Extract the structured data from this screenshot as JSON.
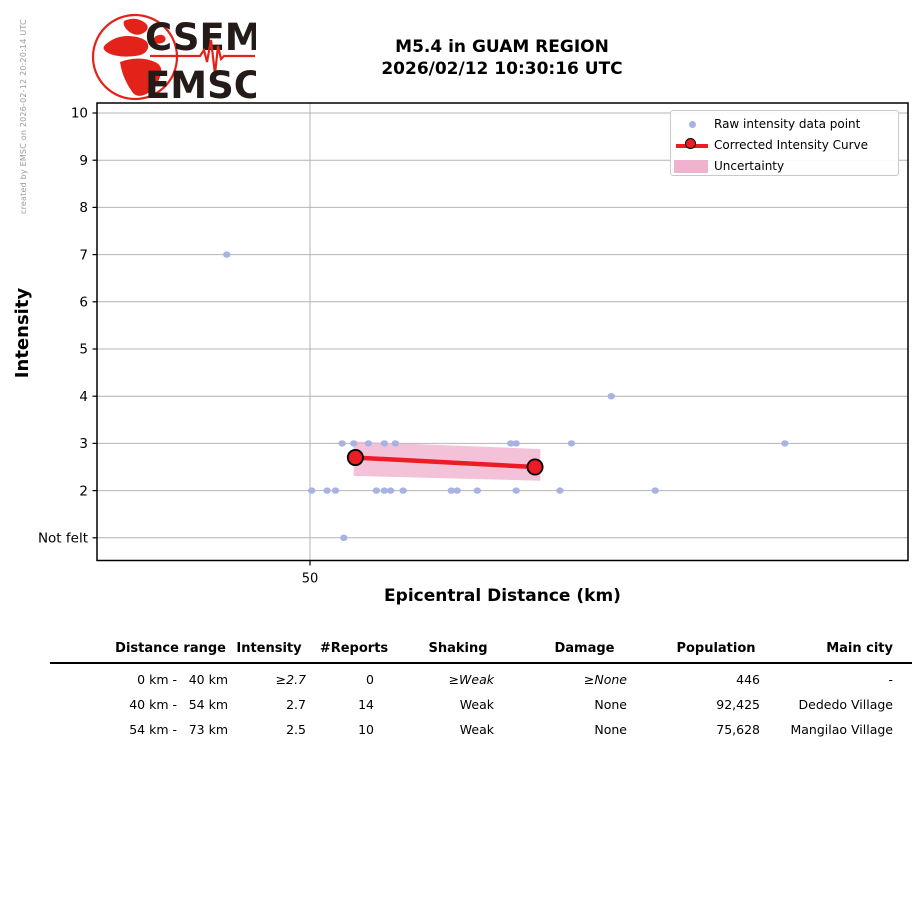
{
  "credit": "created by EMSC on 2026-02-12 20:20:14 UTC",
  "logo": {
    "top_text": "CSEM",
    "bottom_text": "EMSC"
  },
  "title": {
    "line1": "M5.4 in GUAM REGION",
    "line2": "2026/02/12 10:30:16 UTC"
  },
  "chart_data": {
    "type": "scatter",
    "title": "M5.4 in GUAM REGION 2026/02/12 10:30:16 UTC",
    "xlabel": "Epicentral Distance (km)",
    "ylabel": "Intensity",
    "x_scale": "log",
    "x_range_km": [
      39.2,
      100
    ],
    "y_range": [
      0.52,
      10.21
    ],
    "grid": true,
    "x_ticks": [
      {
        "value": 50,
        "label": "50"
      }
    ],
    "y_ticks": [
      {
        "value": 1,
        "label": "Not felt"
      },
      {
        "value": 2,
        "label": "2"
      },
      {
        "value": 3,
        "label": "3"
      },
      {
        "value": 4,
        "label": "4"
      },
      {
        "value": 5,
        "label": "5"
      },
      {
        "value": 6,
        "label": "6"
      },
      {
        "value": 7,
        "label": "7"
      },
      {
        "value": 8,
        "label": "8"
      },
      {
        "value": 9,
        "label": "9"
      },
      {
        "value": 10,
        "label": "10"
      }
    ],
    "legend": [
      {
        "label": "Raw intensity data point",
        "marker": "dot",
        "color": "#a9b3e3"
      },
      {
        "label": "Corrected Intensity Curve",
        "marker": "line-circle",
        "color": "#ec1c24"
      },
      {
        "label": "Uncertainty",
        "marker": "band",
        "color": "#f0b3cf"
      }
    ],
    "raw_points": [
      {
        "km": 45.4,
        "intensity": 7
      },
      {
        "km": 70.9,
        "intensity": 4
      },
      {
        "km": 51.9,
        "intensity": 3
      },
      {
        "km": 52.6,
        "intensity": 3
      },
      {
        "km": 53.5,
        "intensity": 3
      },
      {
        "km": 54.5,
        "intensity": 3
      },
      {
        "km": 55.2,
        "intensity": 3
      },
      {
        "km": 63.1,
        "intensity": 3
      },
      {
        "km": 63.5,
        "intensity": 3
      },
      {
        "km": 67.7,
        "intensity": 3
      },
      {
        "km": 86.7,
        "intensity": 3
      },
      {
        "km": 50.1,
        "intensity": 2
      },
      {
        "km": 51.0,
        "intensity": 2
      },
      {
        "km": 51.5,
        "intensity": 2
      },
      {
        "km": 54.0,
        "intensity": 2
      },
      {
        "km": 54.5,
        "intensity": 2
      },
      {
        "km": 54.9,
        "intensity": 2
      },
      {
        "km": 55.7,
        "intensity": 2
      },
      {
        "km": 58.9,
        "intensity": 2
      },
      {
        "km": 59.3,
        "intensity": 2
      },
      {
        "km": 60.7,
        "intensity": 2
      },
      {
        "km": 63.5,
        "intensity": 2
      },
      {
        "km": 66.8,
        "intensity": 2
      },
      {
        "km": 74.6,
        "intensity": 2
      },
      {
        "km": 52.0,
        "intensity": 1
      }
    ],
    "corrected_curve": [
      {
        "km": 52.7,
        "intensity": 2.7
      },
      {
        "km": 64.9,
        "intensity": 2.5
      }
    ],
    "uncertainty_band": {
      "upper": [
        {
          "km": 52.6,
          "intensity": 3.04
        },
        {
          "km": 65.3,
          "intensity": 2.88
        }
      ],
      "lower": [
        {
          "km": 52.6,
          "intensity": 2.31
        },
        {
          "km": 65.3,
          "intensity": 2.21
        }
      ]
    },
    "colors": {
      "raw_point": "#a9b3e3",
      "curve": "#ec1c24",
      "band": "#f0b3cf",
      "grid": "#b4b4b4"
    }
  },
  "table": {
    "headers": [
      "Distance range",
      "Intensity",
      "#Reports",
      "Shaking",
      "Damage",
      "Population",
      "Main city"
    ],
    "rows": [
      {
        "from": "0 km -",
        "to": "40 km",
        "intensity": "≥2.7",
        "reports": "0",
        "shaking": "≥Weak",
        "damage": "≥None",
        "population": "446",
        "city": "-",
        "estimated": true
      },
      {
        "from": "40 km -",
        "to": "54 km",
        "intensity": "2.7",
        "reports": "14",
        "shaking": "Weak",
        "damage": "None",
        "population": "92,425",
        "city": "Dededo Village",
        "estimated": false
      },
      {
        "from": "54 km -",
        "to": "73 km",
        "intensity": "2.5",
        "reports": "10",
        "shaking": "Weak",
        "damage": "None",
        "population": "75,628",
        "city": "Mangilao Village",
        "estimated": false
      }
    ]
  }
}
